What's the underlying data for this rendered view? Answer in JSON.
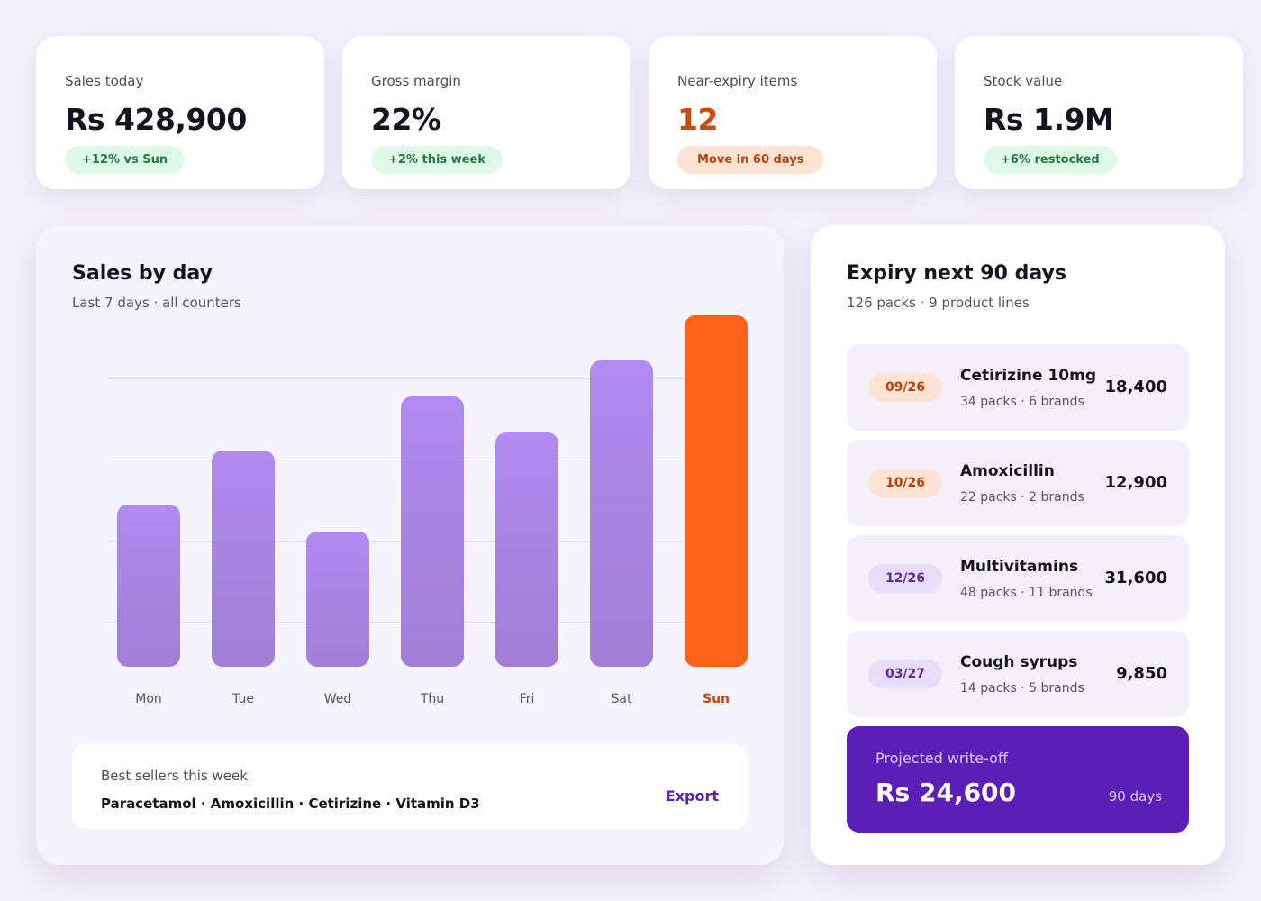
{
  "kpis": [
    {
      "label": "Sales today",
      "value": "Rs 428,900",
      "badge": "+12% vs Sun"
    },
    {
      "label": "Gross margin",
      "value": "22%",
      "badge": "+2% this week"
    },
    {
      "label": "Near-expiry items",
      "value": "12",
      "badge": "Move in 60 days"
    },
    {
      "label": "Stock value",
      "value": "Rs 1.9M",
      "badge": "+6% restocked"
    }
  ],
  "sales": {
    "title": "Sales by day",
    "subtitle": "Last 7 days · all counters"
  },
  "chart_data": {
    "type": "bar",
    "categories": [
      "Mon",
      "Tue",
      "Wed",
      "Thu",
      "Fri",
      "Sat",
      "Sun"
    ],
    "values": [
      180,
      240,
      150,
      300,
      260,
      340,
      390
    ],
    "ylim": [
      0,
      390
    ],
    "highlight_category": "Sun",
    "grid": true,
    "colors": {
      "bar": "#a98aea",
      "highlight": "#ff6219"
    }
  },
  "best_sellers": {
    "label": "Best sellers this week",
    "items": "Paracetamol · Amoxicillin · Cetirizine · Vitamin D3",
    "export_label": "Export"
  },
  "expiry": {
    "title": "Expiry next 90 days",
    "subtitle": "126 packs · 9 product lines",
    "items": [
      {
        "date": "09/26",
        "name": "Cetirizine 10mg",
        "detail": "34 packs · 6 brands",
        "amount": "18,400"
      },
      {
        "date": "10/26",
        "name": "Amoxicillin",
        "detail": "22 packs · 2 brands",
        "amount": "12,900"
      },
      {
        "date": "12/26",
        "name": "Multivitamins",
        "detail": "48 packs · 11 brands",
        "amount": "31,600"
      },
      {
        "date": "03/27",
        "name": "Cough syrups",
        "detail": "14 packs · 5 brands",
        "amount": "9,850"
      }
    ],
    "writeoff": {
      "label": "Projected write-off",
      "value": "Rs 24,600",
      "period": "90 days"
    }
  },
  "colors": {
    "accent": "#5b1fb8",
    "warning": "#cc4a0e",
    "positive_badge_bg": "#dff8e8",
    "positive_badge_text": "#1f7a43"
  }
}
